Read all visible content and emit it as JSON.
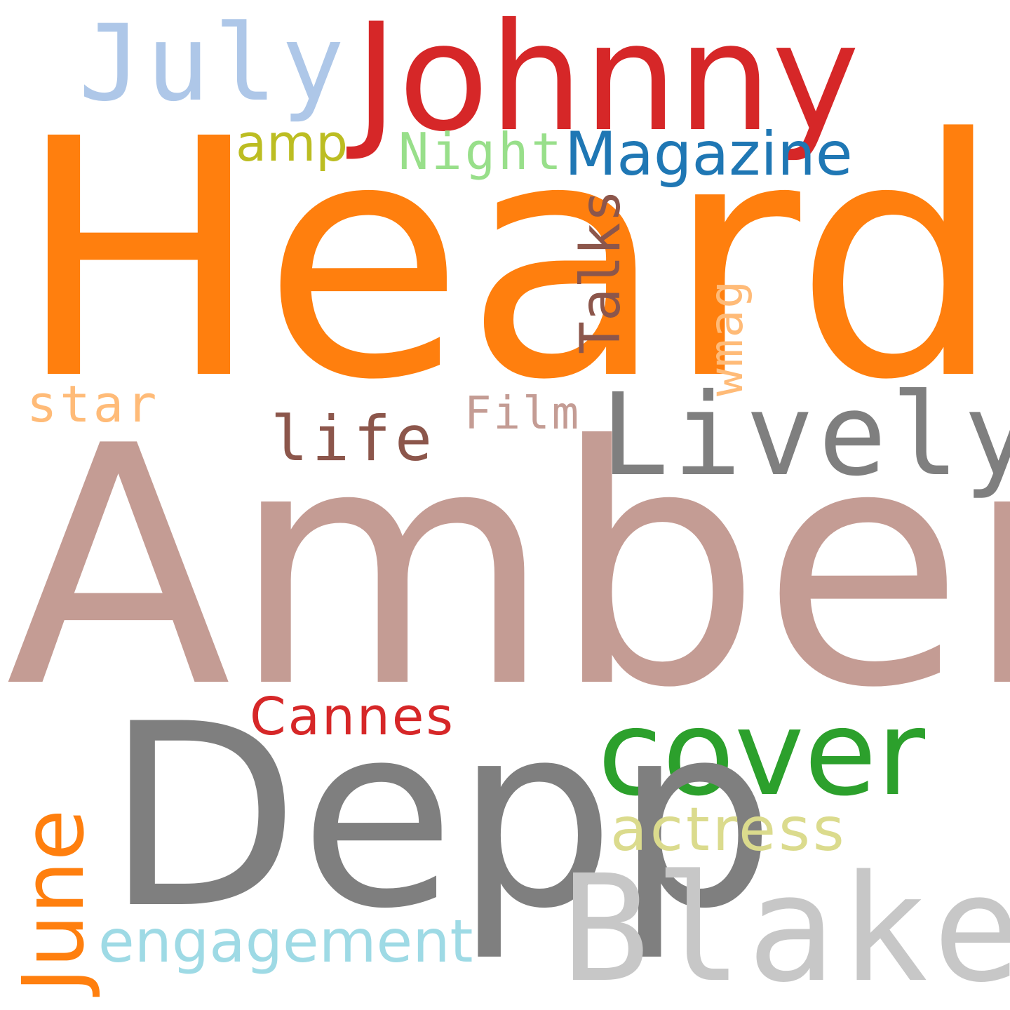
{
  "words": {
    "heard": {
      "text": "Heard",
      "color": "#ff7f0e"
    },
    "amber": {
      "text": "Amber",
      "color": "#c49c94"
    },
    "johnny": {
      "text": "Johnny",
      "color": "#d62728"
    },
    "july": {
      "text": "July",
      "color": "#aec7e8"
    },
    "amp": {
      "text": "amp",
      "color": "#bcbd22"
    },
    "night": {
      "text": "Night",
      "color": "#98df8a"
    },
    "magazine": {
      "text": "Magazine",
      "color": "#1f77b4"
    },
    "talks": {
      "text": "Talks",
      "color": "#8c564b"
    },
    "wmag": {
      "text": "wmag",
      "color": "#ffbb78"
    },
    "star": {
      "text": "star",
      "color": "#ffbb78"
    },
    "film": {
      "text": "Film",
      "color": "#c49c94"
    },
    "lively": {
      "text": "Lively",
      "color": "#7f7f7f"
    },
    "life": {
      "text": "life",
      "color": "#8c564b"
    },
    "cannes": {
      "text": "Cannes",
      "color": "#d62728"
    },
    "cover": {
      "text": "cover",
      "color": "#2ca02c"
    },
    "depp": {
      "text": "Depp",
      "color": "#7f7f7f"
    },
    "june": {
      "text": "June",
      "color": "#ff7f0e"
    },
    "actress": {
      "text": "actress",
      "color": "#dbdb8d"
    },
    "engagement": {
      "text": "engagement",
      "color": "#9edae5"
    },
    "blake": {
      "text": "Blake",
      "color": "#c7c7c7"
    }
  },
  "background_color": "#ffffff"
}
